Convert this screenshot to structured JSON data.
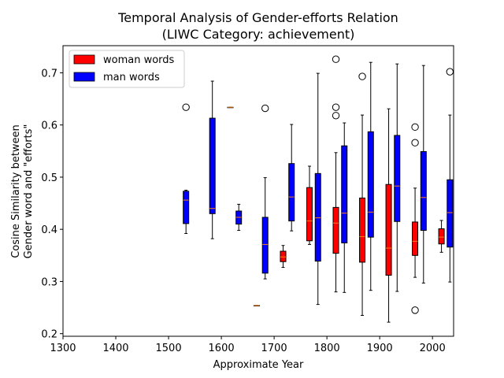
{
  "chart_data": {
    "type": "boxplot",
    "title_line1": "Temporal Analysis of Gender-efforts Relation",
    "title_line2": "(LIWC Category: achievement)",
    "xlabel": "Approximate Year",
    "ylabel_line1": "Cosine Similarity between",
    "ylabel_line2": "Gender word and \"efforts\"",
    "xlim": [
      1300,
      2040
    ],
    "ylim": [
      0.195,
      0.752
    ],
    "xticks": [
      1300,
      1400,
      1500,
      1600,
      1700,
      1800,
      1900,
      2000
    ],
    "yticks": [
      0.2,
      0.3,
      0.4,
      0.5,
      0.6,
      0.7
    ],
    "legend_position": "upper-left",
    "colors": {
      "woman": "#ff0000",
      "man": "#0000ff",
      "median": "#ff7f0e"
    },
    "series": [
      {
        "name": "woman words",
        "color": "#ff0000",
        "boxes": [
          {
            "x": 1617,
            "whislo": 0.634,
            "q1": 0.634,
            "med": 0.634,
            "q3": 0.634,
            "whishi": 0.634,
            "fliers": []
          },
          {
            "x": 1667,
            "whislo": 0.254,
            "q1": 0.254,
            "med": 0.254,
            "q3": 0.254,
            "whishi": 0.254,
            "fliers": []
          },
          {
            "x": 1717,
            "whislo": 0.327,
            "q1": 0.338,
            "med": 0.347,
            "q3": 0.358,
            "whishi": 0.369,
            "fliers": []
          },
          {
            "x": 1767,
            "whislo": 0.371,
            "q1": 0.378,
            "med": 0.416,
            "q3": 0.48,
            "whishi": 0.521,
            "fliers": []
          },
          {
            "x": 1817,
            "whislo": 0.28,
            "q1": 0.354,
            "med": 0.412,
            "q3": 0.442,
            "whishi": 0.547,
            "fliers": [
              0.618,
              0.634,
              0.726
            ]
          },
          {
            "x": 1867,
            "whislo": 0.235,
            "q1": 0.337,
            "med": 0.386,
            "q3": 0.46,
            "whishi": 0.619,
            "fliers": [
              0.693
            ]
          },
          {
            "x": 1917,
            "whislo": 0.222,
            "q1": 0.312,
            "med": 0.364,
            "q3": 0.486,
            "whishi": 0.631,
            "fliers": []
          },
          {
            "x": 1967,
            "whislo": 0.308,
            "q1": 0.35,
            "med": 0.377,
            "q3": 0.414,
            "whishi": 0.479,
            "fliers": [
              0.245,
              0.566,
              0.596
            ]
          },
          {
            "x": 2017,
            "whislo": 0.356,
            "q1": 0.372,
            "med": 0.385,
            "q3": 0.401,
            "whishi": 0.417,
            "fliers": []
          }
        ]
      },
      {
        "name": "man words",
        "color": "#0000ff",
        "boxes": [
          {
            "x": 1533,
            "whislo": 0.392,
            "q1": 0.411,
            "med": 0.456,
            "q3": 0.473,
            "whishi": 0.475,
            "fliers": [
              0.634
            ]
          },
          {
            "x": 1583,
            "whislo": 0.382,
            "q1": 0.43,
            "med": 0.44,
            "q3": 0.613,
            "whishi": 0.684,
            "fliers": []
          },
          {
            "x": 1633,
            "whislo": 0.398,
            "q1": 0.41,
            "med": 0.423,
            "q3": 0.435,
            "whishi": 0.448,
            "fliers": []
          },
          {
            "x": 1683,
            "whislo": 0.305,
            "q1": 0.316,
            "med": 0.371,
            "q3": 0.423,
            "whishi": 0.499,
            "fliers": [
              0.632
            ]
          },
          {
            "x": 1733,
            "whislo": 0.397,
            "q1": 0.416,
            "med": 0.462,
            "q3": 0.526,
            "whishi": 0.601,
            "fliers": []
          },
          {
            "x": 1783,
            "whislo": 0.256,
            "q1": 0.339,
            "med": 0.422,
            "q3": 0.507,
            "whishi": 0.699,
            "fliers": []
          },
          {
            "x": 1833,
            "whislo": 0.279,
            "q1": 0.374,
            "med": 0.431,
            "q3": 0.56,
            "whishi": 0.604,
            "fliers": []
          },
          {
            "x": 1883,
            "whislo": 0.283,
            "q1": 0.385,
            "med": 0.433,
            "q3": 0.587,
            "whishi": 0.72,
            "fliers": []
          },
          {
            "x": 1933,
            "whislo": 0.281,
            "q1": 0.415,
            "med": 0.483,
            "q3": 0.58,
            "whishi": 0.717,
            "fliers": []
          },
          {
            "x": 1983,
            "whislo": 0.297,
            "q1": 0.398,
            "med": 0.461,
            "q3": 0.549,
            "whishi": 0.714,
            "fliers": []
          },
          {
            "x": 2033,
            "whislo": 0.299,
            "q1": 0.366,
            "med": 0.432,
            "q3": 0.495,
            "whishi": 0.619,
            "fliers": [
              0.702
            ]
          }
        ]
      }
    ]
  }
}
